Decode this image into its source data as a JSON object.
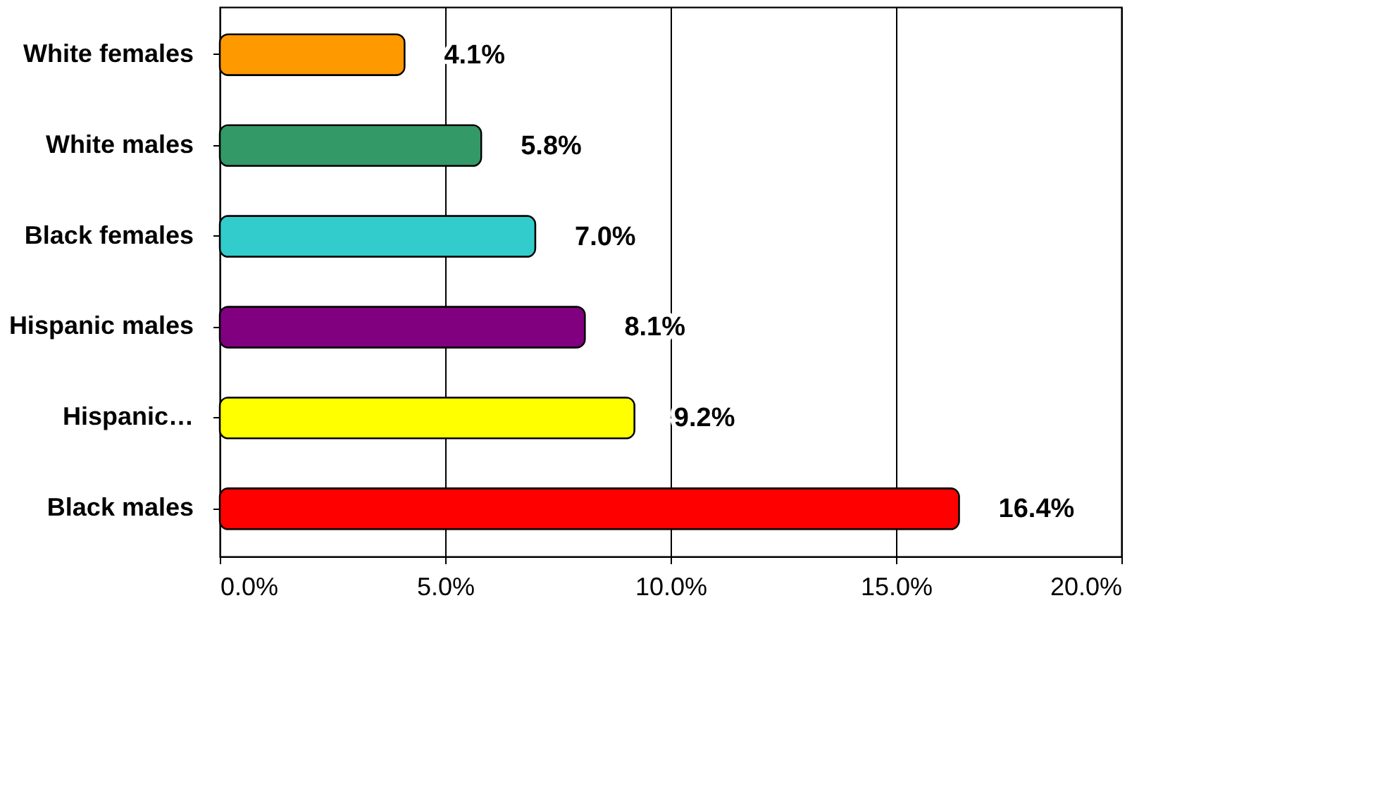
{
  "chart_data": {
    "type": "bar",
    "orientation": "horizontal",
    "categories": [
      "White females",
      "White males",
      "Black females",
      "Hispanic males",
      "Hispanic…",
      "Black males"
    ],
    "values": [
      4.1,
      5.8,
      7.0,
      8.1,
      9.2,
      16.4
    ],
    "colors": [
      "#ff9900",
      "#339966",
      "#33cccc",
      "#800080",
      "#ffff00",
      "#ff0000"
    ],
    "value_labels": [
      "4.1%",
      "5.8%",
      "7.0%",
      "8.1%",
      "9.2%",
      "16.4%"
    ],
    "xlim": [
      0,
      20
    ],
    "xticks": [
      {
        "value": 0,
        "label": "0.0%"
      },
      {
        "value": 5,
        "label": "5.0%"
      },
      {
        "value": 10,
        "label": "10.0%"
      },
      {
        "value": 15,
        "label": "15.0%"
      },
      {
        "value": 20,
        "label": "20.0%"
      }
    ],
    "grid": "x"
  }
}
